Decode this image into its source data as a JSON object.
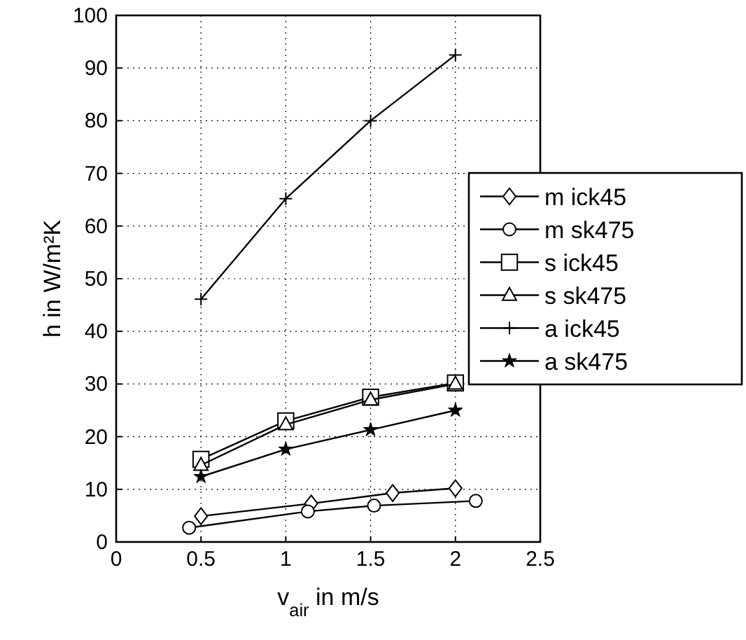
{
  "chart_data": {
    "type": "line",
    "xlabel": "v$_{air}$ in m/s",
    "ylabel": "h in W/m²K",
    "xlim": [
      0,
      2.5
    ],
    "ylim": [
      0,
      100
    ],
    "xticks": [
      0,
      0.5,
      1,
      1.5,
      2,
      2.5
    ],
    "yticks": [
      0,
      10,
      20,
      30,
      40,
      50,
      60,
      70,
      80,
      90,
      100
    ],
    "grid": true,
    "legend": "right",
    "line_style": "solid",
    "series": [
      {
        "name": "m ick45",
        "color": "#000000",
        "marker": "diamond",
        "x": [
          0.5,
          1.15,
          1.63,
          2
        ],
        "values": [
          4.9,
          7.3,
          9.3,
          10.2
        ]
      },
      {
        "name": "m sk475",
        "color": "#000000",
        "marker": "circle",
        "x": [
          0.43,
          1.13,
          1.52,
          2.12
        ],
        "values": [
          2.7,
          5.8,
          6.9,
          7.8
        ]
      },
      {
        "name": "s ick45",
        "color": "#000000",
        "marker": "square",
        "x": [
          0.5,
          1,
          1.5,
          2
        ],
        "values": [
          15.7,
          23,
          27.5,
          30.2
        ]
      },
      {
        "name": "s sk475",
        "color": "#000000",
        "marker": "triangle",
        "x": [
          0.5,
          1,
          1.5,
          2
        ],
        "values": [
          14.6,
          22.3,
          27,
          30
        ]
      },
      {
        "name": "a ick45",
        "color": "#000000",
        "marker": "cross",
        "x": [
          0.5,
          1,
          1.5,
          2
        ],
        "values": [
          46.1,
          65.2,
          80,
          92.5
        ]
      },
      {
        "name": "a sk475",
        "color": "#000000",
        "marker": "star",
        "x": [
          0.5,
          1,
          1.5,
          2
        ],
        "values": [
          12.4,
          17.6,
          21.3,
          25
        ]
      }
    ]
  }
}
